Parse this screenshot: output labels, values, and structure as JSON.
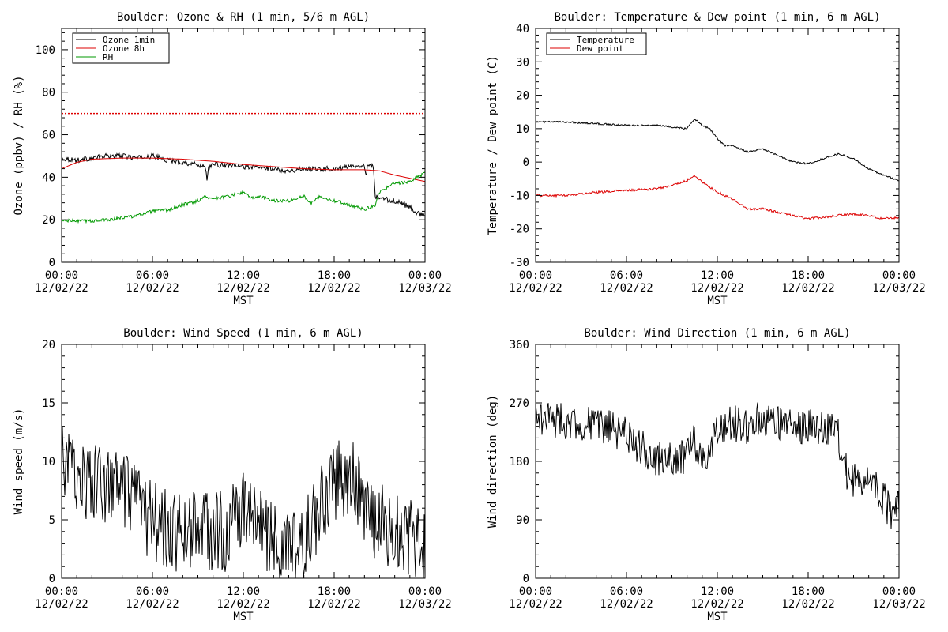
{
  "chart_data": [
    {
      "type": "line",
      "title": "Boulder: Ozone & RH (1 min, 5/6 m AGL)",
      "xlabel": "MST",
      "ylabel": "Ozone (ppbv) / RH (%)",
      "xlim": [
        "12/02/22 00:00",
        "12/03/22 00:00"
      ],
      "ylim": [
        0,
        110
      ],
      "y_ticks": [
        0,
        20,
        40,
        60,
        80,
        100
      ],
      "x_ticks": [
        {
          "time": "00:00",
          "date": "12/02/22"
        },
        {
          "time": "06:00",
          "date": "12/02/22"
        },
        {
          "time": "12:00",
          "date": "12/02/22"
        },
        {
          "time": "18:00",
          "date": "12/02/22"
        },
        {
          "time": "00:00",
          "date": "12/03/22"
        }
      ],
      "legend_position": "top-left",
      "reference_lines": [
        {
          "y": 70,
          "color": "#dd0000",
          "style": "dotted"
        }
      ],
      "series": [
        {
          "name": "Ozone 1min",
          "color": "#000000",
          "noise": 1.2,
          "points": [
            [
              0,
              49
            ],
            [
              1,
              48
            ],
            [
              2,
              49
            ],
            [
              3,
              50
            ],
            [
              4,
              50
            ],
            [
              5,
              49
            ],
            [
              6,
              50
            ],
            [
              7,
              48
            ],
            [
              8,
              47
            ],
            [
              9,
              46
            ],
            [
              9.5,
              45
            ],
            [
              9.6,
              38
            ],
            [
              9.7,
              45
            ],
            [
              10,
              46
            ],
            [
              12,
              45
            ],
            [
              14,
              44
            ],
            [
              15,
              43
            ],
            [
              16,
              44
            ],
            [
              18,
              44
            ],
            [
              19,
              45
            ],
            [
              20,
              46
            ],
            [
              20.1,
              40
            ],
            [
              20.2,
              46
            ],
            [
              20.6,
              45
            ],
            [
              20.7,
              31
            ],
            [
              21,
              30
            ],
            [
              22,
              29
            ],
            [
              23,
              26
            ],
            [
              23.5,
              23
            ],
            [
              24,
              22
            ]
          ]
        },
        {
          "name": "Ozone 8h",
          "color": "#dd0000",
          "noise": 0,
          "points": [
            [
              0,
              44
            ],
            [
              1,
              47
            ],
            [
              2,
              48.5
            ],
            [
              4,
              49
            ],
            [
              6,
              49
            ],
            [
              8,
              48.5
            ],
            [
              10,
              47.5
            ],
            [
              12,
              46
            ],
            [
              14,
              45
            ],
            [
              16,
              44
            ],
            [
              18,
              43.5
            ],
            [
              20,
              43.5
            ],
            [
              21,
              43
            ],
            [
              22,
              41
            ],
            [
              23,
              39.5
            ],
            [
              24,
              38
            ]
          ]
        },
        {
          "name": "RH",
          "color": "#009900",
          "noise": 0.8,
          "points": [
            [
              0,
              19.5
            ],
            [
              2,
              19.5
            ],
            [
              3,
              20
            ],
            [
              4,
              21
            ],
            [
              5,
              22
            ],
            [
              6,
              24
            ],
            [
              7,
              24.5
            ],
            [
              8,
              27
            ],
            [
              9,
              29
            ],
            [
              9.5,
              31
            ],
            [
              10,
              30
            ],
            [
              11,
              31
            ],
            [
              12,
              33
            ],
            [
              12.5,
              30
            ],
            [
              13,
              31
            ],
            [
              14,
              29
            ],
            [
              15,
              29
            ],
            [
              16,
              31
            ],
            [
              16.5,
              28
            ],
            [
              17,
              31
            ],
            [
              17.5,
              30
            ],
            [
              18,
              29
            ],
            [
              19,
              27
            ],
            [
              20,
              25
            ],
            [
              20.7,
              27
            ],
            [
              21,
              33
            ],
            [
              22,
              37
            ],
            [
              23,
              38
            ],
            [
              23.5,
              40
            ],
            [
              24,
              42
            ]
          ]
        }
      ]
    },
    {
      "type": "line",
      "title": "Boulder: Temperature & Dew point (1 min, 6 m AGL)",
      "xlabel": "MST",
      "ylabel": "Temperature / Dew point (C)",
      "xlim": [
        "12/02/22 00:00",
        "12/03/22 00:00"
      ],
      "ylim": [
        -30,
        40
      ],
      "y_ticks": [
        -30,
        -20,
        -10,
        0,
        10,
        20,
        30,
        40
      ],
      "x_ticks": [
        {
          "time": "00:00",
          "date": "12/02/22"
        },
        {
          "time": "06:00",
          "date": "12/02/22"
        },
        {
          "time": "12:00",
          "date": "12/02/22"
        },
        {
          "time": "18:00",
          "date": "12/02/22"
        },
        {
          "time": "00:00",
          "date": "12/03/22"
        }
      ],
      "legend_position": "top-left",
      "reference_lines": [],
      "series": [
        {
          "name": "Temperature",
          "color": "#000000",
          "noise": 0.25,
          "points": [
            [
              0,
              12
            ],
            [
              2,
              12
            ],
            [
              4,
              11.5
            ],
            [
              6,
              11
            ],
            [
              8,
              11
            ],
            [
              9,
              10.5
            ],
            [
              10,
              10
            ],
            [
              10.5,
              13
            ],
            [
              11,
              11
            ],
            [
              11.5,
              10
            ],
            [
              12,
              7
            ],
            [
              12.5,
              5
            ],
            [
              13,
              5
            ],
            [
              14,
              3
            ],
            [
              15,
              4
            ],
            [
              16,
              2
            ],
            [
              17,
              0
            ],
            [
              18,
              -0.5
            ],
            [
              19,
              1
            ],
            [
              20,
              2.5
            ],
            [
              21,
              1
            ],
            [
              22,
              -2
            ],
            [
              23,
              -4
            ],
            [
              24,
              -5.5
            ]
          ]
        },
        {
          "name": "Dew point",
          "color": "#dd0000",
          "noise": 0.35,
          "points": [
            [
              0,
              -10
            ],
            [
              2,
              -10
            ],
            [
              4,
              -9
            ],
            [
              6,
              -8.5
            ],
            [
              8,
              -8
            ],
            [
              9,
              -7
            ],
            [
              10,
              -5.5
            ],
            [
              10.5,
              -4
            ],
            [
              11,
              -6
            ],
            [
              11.5,
              -7.5
            ],
            [
              12,
              -9
            ],
            [
              13,
              -11
            ],
            [
              14,
              -14
            ],
            [
              15,
              -14
            ],
            [
              16,
              -15
            ],
            [
              17,
              -16
            ],
            [
              18,
              -17
            ],
            [
              19,
              -16.5
            ],
            [
              20,
              -16
            ],
            [
              21,
              -15.5
            ],
            [
              22,
              -16
            ],
            [
              23,
              -17
            ],
            [
              24,
              -16.5
            ]
          ]
        }
      ]
    },
    {
      "type": "line",
      "title": "Boulder: Wind Speed (1 min, 6 m AGL)",
      "xlabel": "MST",
      "ylabel": "Wind speed (m/s)",
      "xlim": [
        "12/02/22 00:00",
        "12/03/22 00:00"
      ],
      "ylim": [
        0,
        20
      ],
      "y_ticks": [
        0,
        5,
        10,
        15,
        20
      ],
      "x_ticks": [
        {
          "time": "00:00",
          "date": "12/02/22"
        },
        {
          "time": "06:00",
          "date": "12/02/22"
        },
        {
          "time": "12:00",
          "date": "12/02/22"
        },
        {
          "time": "18:00",
          "date": "12/02/22"
        },
        {
          "time": "00:00",
          "date": "12/03/22"
        }
      ],
      "legend_position": "none",
      "reference_lines": [],
      "series": [
        {
          "name": "",
          "color": "#000000",
          "noise": 3.5,
          "points": [
            [
              0,
              10
            ],
            [
              1,
              9
            ],
            [
              2,
              8
            ],
            [
              3,
              8
            ],
            [
              4,
              7.5
            ],
            [
              5,
              6
            ],
            [
              6,
              5
            ],
            [
              7,
              4
            ],
            [
              8,
              4
            ],
            [
              9,
              4.5
            ],
            [
              10,
              4
            ],
            [
              11,
              4
            ],
            [
              12,
              6
            ],
            [
              13,
              5
            ],
            [
              14,
              3
            ],
            [
              15,
              2
            ],
            [
              16,
              3
            ],
            [
              17,
              6
            ],
            [
              18,
              8
            ],
            [
              19,
              9
            ],
            [
              19.5,
              8
            ],
            [
              20,
              5
            ],
            [
              21,
              5
            ],
            [
              22,
              4
            ],
            [
              23,
              3.5
            ],
            [
              24,
              2
            ]
          ]
        }
      ]
    },
    {
      "type": "line",
      "title": "Boulder: Wind Direction (1 min, 6 m AGL)",
      "xlabel": "MST",
      "ylabel": "Wind direction (deg)",
      "xlim": [
        "12/02/22 00:00",
        "12/03/22 00:00"
      ],
      "ylim": [
        0,
        360
      ],
      "y_ticks": [
        0,
        90,
        180,
        270,
        360
      ],
      "x_ticks": [
        {
          "time": "00:00",
          "date": "12/02/22"
        },
        {
          "time": "06:00",
          "date": "12/02/22"
        },
        {
          "time": "12:00",
          "date": "12/02/22"
        },
        {
          "time": "18:00",
          "date": "12/02/22"
        },
        {
          "time": "00:00",
          "date": "12/03/22"
        }
      ],
      "legend_position": "none",
      "reference_lines": [],
      "series": [
        {
          "name": "",
          "color": "#000000",
          "noise": 28,
          "points": [
            [
              0,
              250
            ],
            [
              2,
              240
            ],
            [
              4,
              235
            ],
            [
              5,
              230
            ],
            [
              6,
              220
            ],
            [
              7,
              200
            ],
            [
              8,
              185
            ],
            [
              9,
              180
            ],
            [
              10,
              190
            ],
            [
              10.5,
              210
            ],
            [
              11,
              180
            ],
            [
              12,
              230
            ],
            [
              13,
              240
            ],
            [
              14,
              230
            ],
            [
              15,
              250
            ],
            [
              16,
              240
            ],
            [
              17,
              235
            ],
            [
              18,
              235
            ],
            [
              19,
              230
            ],
            [
              20,
              230
            ],
            [
              20.1,
              180
            ],
            [
              21,
              150
            ],
            [
              22,
              160
            ],
            [
              23,
              120
            ],
            [
              23.5,
              100
            ],
            [
              24,
              120
            ]
          ]
        }
      ]
    }
  ]
}
